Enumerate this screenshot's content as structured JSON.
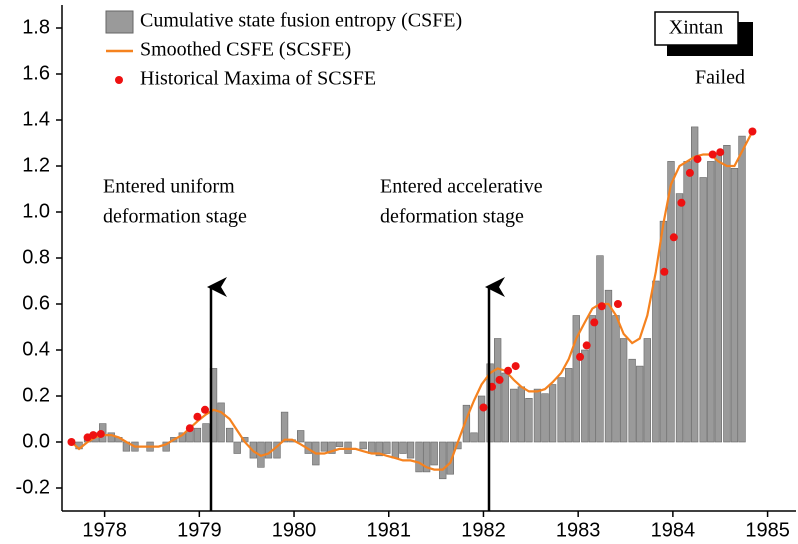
{
  "chart_data": {
    "type": "bar",
    "legend": "upper left",
    "xlim": [
      1977.55,
      1985.3
    ],
    "xticks": [
      1978,
      1979,
      1980,
      1981,
      1982,
      1983,
      1984,
      1985
    ],
    "ylim": [
      -0.3,
      1.9
    ],
    "yticks": [
      {
        "value": -0.2,
        "label": "-0.2"
      },
      {
        "value": 0,
        "label": "0.0"
      },
      0.2,
      0.4,
      0.6,
      0.8,
      {
        "value": 1,
        "label": "1.0"
      },
      1.2,
      1.4,
      1.6,
      1.8
    ],
    "series": [
      {
        "name": "Cumulative state fusion entropy (CSFE)",
        "type": "bar",
        "color": "#9a9a9a",
        "x": [
          1977.65,
          1977.73,
          1977.82,
          1977.9,
          1977.98,
          1978.07,
          1978.15,
          1978.23,
          1978.32,
          1978.4,
          1978.48,
          1978.57,
          1978.65,
          1978.73,
          1978.82,
          1978.9,
          1978.98,
          1979.07,
          1979.15,
          1979.23,
          1979.32,
          1979.4,
          1979.48,
          1979.57,
          1979.65,
          1979.73,
          1979.82,
          1979.9,
          1979.98,
          1980.07,
          1980.15,
          1980.23,
          1980.32,
          1980.4,
          1980.48,
          1980.57,
          1980.65,
          1980.73,
          1980.82,
          1980.9,
          1980.98,
          1981.07,
          1981.15,
          1981.23,
          1981.32,
          1981.4,
          1981.48,
          1981.57,
          1981.65,
          1981.73,
          1981.82,
          1981.9,
          1981.98,
          1982.07,
          1982.15,
          1982.23,
          1982.32,
          1982.4,
          1982.48,
          1982.57,
          1982.65,
          1982.73,
          1982.82,
          1982.9,
          1982.98,
          1983.07,
          1983.15,
          1983.23,
          1983.32,
          1983.4,
          1983.48,
          1983.57,
          1983.65,
          1983.73,
          1983.82,
          1983.9,
          1983.98,
          1984.07,
          1984.15,
          1984.23,
          1984.32,
          1984.4,
          1984.48,
          1984.57,
          1984.65,
          1984.73
        ],
        "values": [
          0.0,
          -0.03,
          0.02,
          0.04,
          0.08,
          0.04,
          0.02,
          -0.04,
          -0.04,
          0.0,
          -0.04,
          0.0,
          -0.04,
          0.02,
          0.04,
          0.05,
          0.06,
          0.08,
          0.32,
          0.17,
          0.06,
          -0.05,
          0.02,
          -0.07,
          -0.11,
          -0.07,
          -0.07,
          0.13,
          0.01,
          0.05,
          -0.05,
          -0.1,
          -0.04,
          -0.05,
          -0.02,
          -0.05,
          0.0,
          -0.03,
          -0.05,
          -0.06,
          -0.05,
          -0.07,
          -0.05,
          -0.07,
          -0.13,
          -0.13,
          -0.1,
          -0.16,
          -0.14,
          -0.03,
          0.16,
          0.04,
          0.2,
          0.34,
          0.45,
          0.3,
          0.23,
          0.24,
          0.19,
          0.23,
          0.21,
          0.25,
          0.28,
          0.32,
          0.55,
          0.4,
          0.55,
          0.81,
          0.66,
          0.55,
          0.45,
          0.36,
          0.33,
          0.45,
          0.7,
          0.96,
          1.22,
          1.08,
          1.22,
          1.37,
          1.15,
          1.22,
          1.25,
          1.29,
          1.19,
          1.33
        ]
      },
      {
        "name": "Smoothed CSFE (SCSFE)",
        "type": "line",
        "color": "#f5821f",
        "x": [
          1977.65,
          1977.73,
          1977.82,
          1977.9,
          1977.98,
          1978.07,
          1978.15,
          1978.23,
          1978.32,
          1978.4,
          1978.48,
          1978.57,
          1978.65,
          1978.73,
          1978.82,
          1978.9,
          1978.98,
          1979.07,
          1979.15,
          1979.23,
          1979.32,
          1979.4,
          1979.48,
          1979.57,
          1979.65,
          1979.73,
          1979.82,
          1979.9,
          1979.98,
          1980.07,
          1980.15,
          1980.23,
          1980.32,
          1980.4,
          1980.48,
          1980.57,
          1980.65,
          1980.73,
          1980.82,
          1980.9,
          1980.98,
          1981.07,
          1981.15,
          1981.23,
          1981.32,
          1981.4,
          1981.48,
          1981.57,
          1981.65,
          1981.73,
          1981.82,
          1981.9,
          1981.98,
          1982.07,
          1982.15,
          1982.23,
          1982.32,
          1982.4,
          1982.48,
          1982.57,
          1982.65,
          1982.73,
          1982.82,
          1982.9,
          1982.98,
          1983.07,
          1983.15,
          1983.23,
          1983.32,
          1983.4,
          1983.48,
          1983.57,
          1983.65,
          1983.73,
          1983.82,
          1983.9,
          1983.98,
          1984.07,
          1984.15,
          1984.23,
          1984.32,
          1984.4,
          1984.48,
          1984.57,
          1984.65,
          1984.84
        ],
        "values": [
          0.0,
          -0.03,
          0.0,
          0.02,
          0.03,
          0.03,
          0.02,
          0.0,
          -0.02,
          -0.02,
          -0.02,
          -0.02,
          -0.01,
          0.01,
          0.03,
          0.06,
          0.09,
          0.12,
          0.14,
          0.13,
          0.1,
          0.05,
          0.0,
          -0.04,
          -0.06,
          -0.05,
          -0.02,
          0.01,
          0.01,
          -0.01,
          -0.03,
          -0.05,
          -0.05,
          -0.04,
          -0.03,
          -0.03,
          -0.03,
          -0.04,
          -0.05,
          -0.05,
          -0.06,
          -0.07,
          -0.08,
          -0.08,
          -0.09,
          -0.11,
          -0.12,
          -0.12,
          -0.09,
          0.0,
          0.1,
          0.18,
          0.25,
          0.3,
          0.32,
          0.31,
          0.27,
          0.24,
          0.22,
          0.22,
          0.23,
          0.26,
          0.3,
          0.36,
          0.45,
          0.52,
          0.58,
          0.6,
          0.6,
          0.55,
          0.47,
          0.43,
          0.45,
          0.55,
          0.74,
          0.95,
          1.12,
          1.2,
          1.22,
          1.24,
          1.25,
          1.25,
          1.22,
          1.2,
          1.2,
          1.35
        ]
      },
      {
        "name": "Historical Maxima of SCSFE",
        "type": "scatter",
        "color": "#ee1111",
        "x": [
          1977.65,
          1977.82,
          1977.88,
          1977.96,
          1978.9,
          1978.98,
          1979.06,
          1982.0,
          1982.09,
          1982.17,
          1982.26,
          1982.34,
          1983.02,
          1983.09,
          1983.17,
          1983.25,
          1983.42,
          1983.91,
          1984.01,
          1984.09,
          1984.18,
          1984.26,
          1984.42,
          1984.5,
          1984.84
        ],
        "values": [
          0.0,
          0.02,
          0.03,
          0.035,
          0.06,
          0.11,
          0.14,
          0.15,
          0.24,
          0.27,
          0.31,
          0.33,
          0.37,
          0.42,
          0.52,
          0.59,
          0.6,
          0.74,
          0.89,
          1.04,
          1.17,
          1.23,
          1.25,
          1.26,
          1.35
        ]
      }
    ],
    "annotations": [
      {
        "lines": [
          "Entered uniform",
          "deformation stage"
        ]
      },
      {
        "lines": [
          "Entered accelerative",
          "deformation stage"
        ]
      },
      {
        "lines": [
          "Xintan",
          "Failed"
        ]
      }
    ]
  }
}
